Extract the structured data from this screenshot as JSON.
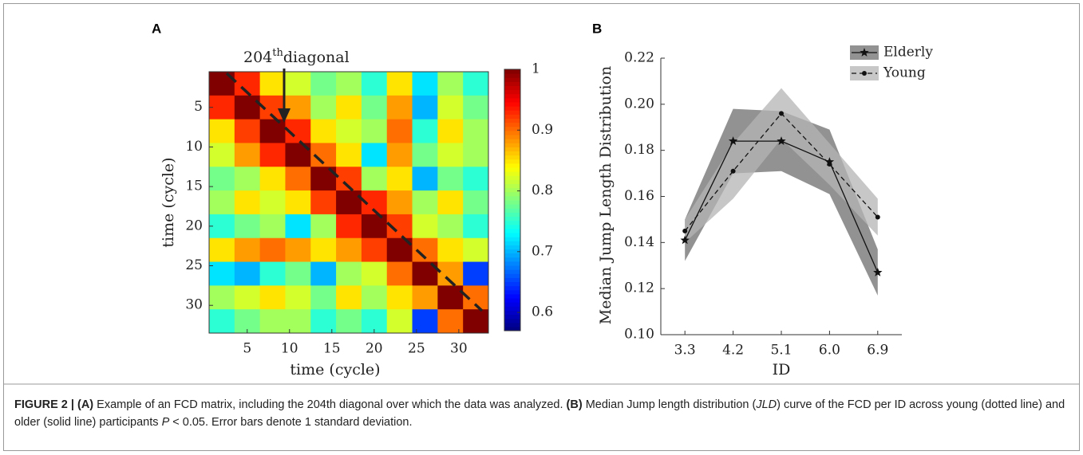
{
  "panels": [
    "A",
    "B"
  ],
  "chart_data": [
    {
      "type": "heatmap",
      "annotation": {
        "number": "204",
        "superscript": "th",
        "text": "diagonal"
      },
      "xlabel": "time (cycle)",
      "ylabel": "time (cycle)",
      "x": [
        2,
        5,
        8,
        11,
        14,
        17,
        20,
        23,
        26,
        29,
        32
      ],
      "y": [
        2,
        5,
        8,
        11,
        14,
        17,
        20,
        23,
        26,
        29,
        32
      ],
      "z": [
        [
          1,
          0.93,
          0.85,
          0.82,
          0.78,
          0.8,
          0.75,
          0.85,
          0.72,
          0.8,
          0.75
        ],
        [
          0.93,
          1,
          0.92,
          0.88,
          0.8,
          0.85,
          0.78,
          0.88,
          0.7,
          0.82,
          0.78
        ],
        [
          0.85,
          0.92,
          1,
          0.93,
          0.85,
          0.82,
          0.8,
          0.9,
          0.75,
          0.85,
          0.8
        ],
        [
          0.82,
          0.88,
          0.93,
          1,
          0.9,
          0.85,
          0.72,
          0.88,
          0.78,
          0.82,
          0.8
        ],
        [
          0.78,
          0.8,
          0.85,
          0.9,
          1,
          0.92,
          0.8,
          0.85,
          0.7,
          0.78,
          0.75
        ],
        [
          0.8,
          0.85,
          0.82,
          0.85,
          0.92,
          1,
          0.93,
          0.88,
          0.8,
          0.85,
          0.78
        ],
        [
          0.75,
          0.78,
          0.8,
          0.72,
          0.8,
          0.93,
          1,
          0.92,
          0.82,
          0.8,
          0.75
        ],
        [
          0.85,
          0.88,
          0.9,
          0.88,
          0.85,
          0.88,
          0.92,
          1,
          0.9,
          0.85,
          0.82
        ],
        [
          0.72,
          0.7,
          0.75,
          0.78,
          0.7,
          0.8,
          0.82,
          0.9,
          1,
          0.88,
          0.65
        ],
        [
          0.8,
          0.82,
          0.85,
          0.82,
          0.78,
          0.85,
          0.8,
          0.85,
          0.88,
          1,
          0.9
        ],
        [
          0.75,
          0.78,
          0.8,
          0.8,
          0.75,
          0.78,
          0.75,
          0.82,
          0.65,
          0.9,
          1
        ]
      ],
      "xlim": [
        0.5,
        33.5
      ],
      "ylim": [
        0.5,
        33.5
      ],
      "yreverse": true,
      "xticks": [
        5,
        10,
        15,
        20,
        25,
        30
      ],
      "yticks": [
        5,
        10,
        15,
        20,
        25,
        30
      ],
      "colormap": "jet",
      "clim": [
        0.57,
        1
      ],
      "cticks": [
        0.6,
        0.7,
        0.8,
        0.9,
        1
      ]
    },
    {
      "type": "line",
      "xlabel": "ID",
      "ylabel": "Median Jump Length Distribution",
      "categories": [
        "3.3",
        "4.2",
        "5.1",
        "6.0",
        "6.9"
      ],
      "ylim": [
        0.1,
        0.22
      ],
      "yticks": [
        {
          "value": 0.1,
          "label": "0.10"
        },
        {
          "value": 0.12,
          "label": "0.12"
        },
        {
          "value": 0.14,
          "label": "0.14"
        },
        {
          "value": 0.16,
          "label": "0.16"
        },
        {
          "value": 0.18,
          "label": "0.18"
        },
        {
          "value": 0.2,
          "label": "0.20"
        },
        {
          "value": 0.22,
          "label": "0.22"
        }
      ],
      "legend": "upper right",
      "series": [
        {
          "name": "Elderly",
          "color": "#111111",
          "band_color": "#6e6e6e",
          "marker": "star",
          "dash": "solid",
          "values": [
            0.141,
            0.184,
            0.184,
            0.175,
            0.127
          ],
          "errors": [
            0.009,
            0.014,
            0.013,
            0.014,
            0.01
          ]
        },
        {
          "name": "Young",
          "color": "#111111",
          "band_color": "#b4b4b4",
          "marker": "dot",
          "dash": "dashed",
          "values": [
            0.145,
            0.171,
            0.196,
            0.174,
            0.151
          ],
          "errors": [
            0.005,
            0.012,
            0.011,
            0.009,
            0.008
          ]
        }
      ]
    }
  ],
  "caption": [
    "FIGURE 2 | (A)",
    " Example of an FCD matrix, including the 204th diagonal over which the data was analyzed. ",
    "(B)",
    " Median Jump length distribution (",
    "JLD",
    ") curve of the FCD per ID across young (dotted line) and older (solid line) participants ",
    "P",
    " < 0.05. Error bars denote 1 standard deviation."
  ]
}
